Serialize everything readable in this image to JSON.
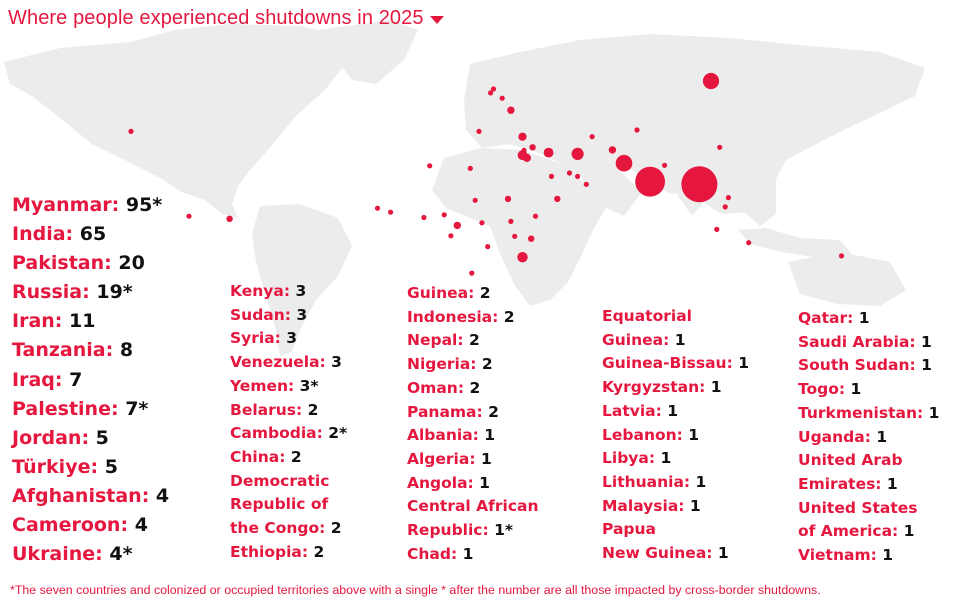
{
  "header": {
    "title": "Where people experienced shutdowns in 2025",
    "caret_icon": "caret-down-icon"
  },
  "colors": {
    "accent": "#e5173f",
    "land": "#ececec",
    "count_text": "#111111",
    "background": "#ffffff"
  },
  "map": {
    "marker_color": "#e5173f",
    "markers": [
      {
        "label": "United States of America",
        "lon": -100,
        "lat": 41,
        "count": 1
      },
      {
        "label": "Venezuela",
        "lon": -66,
        "lat": 8,
        "count": 3
      },
      {
        "label": "Panama",
        "lon": -80,
        "lat": 9,
        "count": 2
      },
      {
        "label": "Russia",
        "lon": 100,
        "lat": 60,
        "count": 19
      },
      {
        "label": "Latvia",
        "lon": 25,
        "lat": 57,
        "count": 1
      },
      {
        "label": "Lithuania",
        "lon": 24,
        "lat": 55.5,
        "count": 1
      },
      {
        "label": "Belarus",
        "lon": 28,
        "lat": 53.5,
        "count": 2
      },
      {
        "label": "Ukraine",
        "lon": 31,
        "lat": 49,
        "count": 4
      },
      {
        "label": "Albania",
        "lon": 20,
        "lat": 41,
        "count": 1
      },
      {
        "label": "Türkiye",
        "lon": 35,
        "lat": 39,
        "count": 5
      },
      {
        "label": "Syria",
        "lon": 38.5,
        "lat": 35,
        "count": 3
      },
      {
        "label": "Lebanon",
        "lon": 35.5,
        "lat": 33.8,
        "count": 1
      },
      {
        "label": "Palestine",
        "lon": 35,
        "lat": 32,
        "count": 7
      },
      {
        "label": "Jordan",
        "lon": 36.5,
        "lat": 31,
        "count": 5
      },
      {
        "label": "Iraq",
        "lon": 44,
        "lat": 33,
        "count": 7
      },
      {
        "label": "Iran",
        "lon": 54,
        "lat": 32.5,
        "count": 11
      },
      {
        "label": "Afghanistan",
        "lon": 66,
        "lat": 34,
        "count": 4
      },
      {
        "label": "Pakistan",
        "lon": 70,
        "lat": 29,
        "count": 20
      },
      {
        "label": "India",
        "lon": 79,
        "lat": 22,
        "count": 65
      },
      {
        "label": "Nepal",
        "lon": 84,
        "lat": 28.2,
        "count": 2
      },
      {
        "label": "Myanmar",
        "lon": 96,
        "lat": 21,
        "count": 95
      },
      {
        "label": "China",
        "lon": 103,
        "lat": 35,
        "count": 2
      },
      {
        "label": "Kyrgyzstan",
        "lon": 74.5,
        "lat": 41.5,
        "count": 1
      },
      {
        "label": "Turkmenistan",
        "lon": 59,
        "lat": 39,
        "count": 1
      },
      {
        "label": "Saudi Arabia",
        "lon": 45,
        "lat": 24,
        "count": 1
      },
      {
        "label": "Qatar",
        "lon": 51.2,
        "lat": 25.3,
        "count": 1
      },
      {
        "label": "United Arab Emirates",
        "lon": 54,
        "lat": 24,
        "count": 1
      },
      {
        "label": "Oman",
        "lon": 57,
        "lat": 21,
        "count": 2
      },
      {
        "label": "Yemen",
        "lon": 47,
        "lat": 15.5,
        "count": 3
      },
      {
        "label": "Algeria",
        "lon": 3,
        "lat": 28,
        "count": 1
      },
      {
        "label": "Libya",
        "lon": 17,
        "lat": 27,
        "count": 1
      },
      {
        "label": "Chad",
        "lon": 18.7,
        "lat": 15,
        "count": 1
      },
      {
        "label": "Sudan",
        "lon": 30,
        "lat": 15.5,
        "count": 3
      },
      {
        "label": "South Sudan",
        "lon": 31,
        "lat": 7,
        "count": 1
      },
      {
        "label": "Ethiopia",
        "lon": 39.5,
        "lat": 9,
        "count": 2
      },
      {
        "label": "Nigeria",
        "lon": 8,
        "lat": 9.5,
        "count": 2
      },
      {
        "label": "Togo",
        "lon": 1,
        "lat": 8.5,
        "count": 1
      },
      {
        "label": "Guinea",
        "lon": -10.5,
        "lat": 10.5,
        "count": 2
      },
      {
        "label": "Guinea-Bissau",
        "lon": -15,
        "lat": 12,
        "count": 1
      },
      {
        "label": "Cameroon",
        "lon": 12.5,
        "lat": 5.5,
        "count": 4
      },
      {
        "label": "Central African Republic",
        "lon": 21,
        "lat": 6.5,
        "count": 1
      },
      {
        "label": "Equatorial Guinea",
        "lon": 10.3,
        "lat": 1.6,
        "count": 1
      },
      {
        "label": "Democratic Republic of the Congo",
        "lon": 23,
        "lat": -2.5,
        "count": 2
      },
      {
        "label": "Uganda",
        "lon": 32.3,
        "lat": 1.4,
        "count": 1
      },
      {
        "label": "Kenya",
        "lon": 38,
        "lat": 0.5,
        "count": 3
      },
      {
        "label": "Tanzania",
        "lon": 35,
        "lat": -6.5,
        "count": 8
      },
      {
        "label": "Angola",
        "lon": 17.5,
        "lat": -12.5,
        "count": 1
      },
      {
        "label": "Cambodia",
        "lon": 104.9,
        "lat": 12.5,
        "count": 2
      },
      {
        "label": "Vietnam",
        "lon": 106,
        "lat": 16,
        "count": 1
      },
      {
        "label": "Malaysia",
        "lon": 102,
        "lat": 4,
        "count": 1
      },
      {
        "label": "Indonesia",
        "lon": 113,
        "lat": -1,
        "count": 2
      },
      {
        "label": "Papua New Guinea",
        "lon": 145,
        "lat": -6,
        "count": 1
      }
    ]
  },
  "countries_big": [
    {
      "name": "Myanmar:",
      "count": "95*"
    },
    {
      "name": "India:",
      "count": "65"
    },
    {
      "name": "Pakistan:",
      "count": "20"
    },
    {
      "name": "Russia:",
      "count": "19*"
    },
    {
      "name": "Iran:",
      "count": "11"
    },
    {
      "name": "Tanzania:",
      "count": "8"
    },
    {
      "name": "Iraq:",
      "count": "7"
    },
    {
      "name": "Palestine:",
      "count": "7*"
    },
    {
      "name": "Jordan:",
      "count": "5"
    },
    {
      "name": "Türkiye:",
      "count": "5"
    },
    {
      "name": "Afghanistan:",
      "count": "4"
    },
    {
      "name": "Cameroon:",
      "count": "4"
    },
    {
      "name": "Ukraine:",
      "count": "4*"
    }
  ],
  "countries_col2": [
    {
      "name": "Kenya:",
      "count": "3"
    },
    {
      "name": "Sudan:",
      "count": "3"
    },
    {
      "name": "Syria:",
      "count": "3"
    },
    {
      "name": "Venezuela:",
      "count": "3"
    },
    {
      "name": "Yemen:",
      "count": "3*"
    },
    {
      "name": "Belarus:",
      "count": "2"
    },
    {
      "name": "Cambodia:",
      "count": "2*"
    },
    {
      "name": "China:",
      "count": "2"
    },
    {
      "name": "Democratic",
      "count": ""
    },
    {
      "name": "Republic of",
      "count": ""
    },
    {
      "name": "the Congo:",
      "count": "2"
    },
    {
      "name": "Ethiopia:",
      "count": "2"
    }
  ],
  "countries_col3": [
    {
      "name": "Guinea:",
      "count": "2"
    },
    {
      "name": "Indonesia:",
      "count": "2"
    },
    {
      "name": "Nepal:",
      "count": "2"
    },
    {
      "name": "Nigeria:",
      "count": "2"
    },
    {
      "name": "Oman:",
      "count": "2"
    },
    {
      "name": "Panama:",
      "count": "2"
    },
    {
      "name": "Albania:",
      "count": "1"
    },
    {
      "name": "Algeria:",
      "count": "1"
    },
    {
      "name": "Angola:",
      "count": "1"
    },
    {
      "name": "Central African",
      "count": ""
    },
    {
      "name": "Republic:",
      "count": "1*"
    },
    {
      "name": "Chad:",
      "count": "1"
    }
  ],
  "countries_col4": [
    {
      "name": "Equatorial",
      "count": ""
    },
    {
      "name": "Guinea:",
      "count": "1"
    },
    {
      "name": "Guinea-Bissau:",
      "count": "1"
    },
    {
      "name": "Kyrgyzstan:",
      "count": "1"
    },
    {
      "name": "Latvia:",
      "count": "1"
    },
    {
      "name": "Lebanon:",
      "count": "1"
    },
    {
      "name": "Libya:",
      "count": "1"
    },
    {
      "name": "Lithuania:",
      "count": "1"
    },
    {
      "name": "Malaysia:",
      "count": "1"
    },
    {
      "name": "Papua",
      "count": ""
    },
    {
      "name": "New Guinea:",
      "count": "1"
    }
  ],
  "countries_col5": [
    {
      "name": "Qatar:",
      "count": "1"
    },
    {
      "name": "Saudi Arabia:",
      "count": "1"
    },
    {
      "name": "South Sudan:",
      "count": "1"
    },
    {
      "name": "Togo:",
      "count": "1"
    },
    {
      "name": "Turkmenistan:",
      "count": "1"
    },
    {
      "name": "Uganda:",
      "count": "1"
    },
    {
      "name": "United Arab",
      "count": ""
    },
    {
      "name": "Emirates:",
      "count": "1"
    },
    {
      "name": "United States",
      "count": ""
    },
    {
      "name": "of America:",
      "count": "1"
    },
    {
      "name": "Vietnam:",
      "count": "1"
    }
  ],
  "footnote": "*The seven countries and colonized or occupied territories above with a single * after the number are all those impacted by cross-border shutdowns."
}
